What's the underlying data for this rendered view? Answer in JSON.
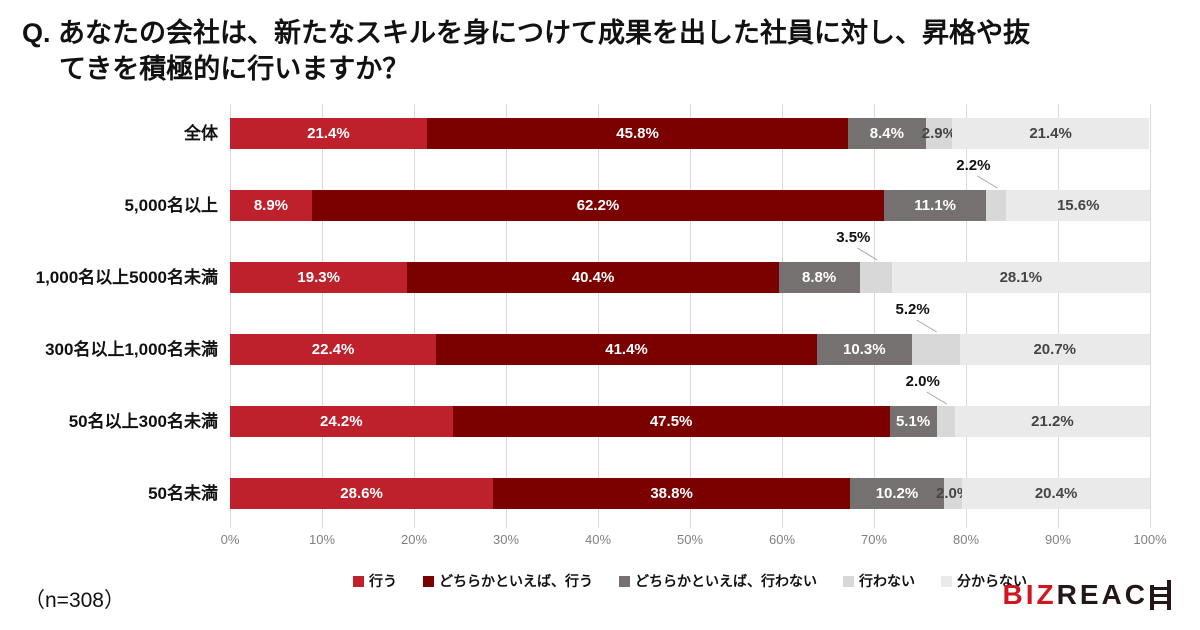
{
  "title": {
    "line1": "Q. あなたの会社は、新たなスキルを身につけて成果を出した社員に対し、昇格や抜",
    "line2": "てきを積極的に行いますか？"
  },
  "note": "（n=308）",
  "logo": {
    "text_red": "BIZ",
    "text_dark": "REAC",
    "ladder_icon": "ladder-h-icon",
    "red_color": "#d0161f",
    "dark_color": "#231815"
  },
  "chart_data": {
    "type": "bar",
    "orientation": "horizontal-stacked",
    "categories": [
      "全体",
      "5,000名以上",
      "1,000名以上5000名未満",
      "300名以上1,000名未満",
      "50名以上300名未満",
      "50名未満"
    ],
    "series": [
      {
        "name": "行う",
        "color": "#be212b",
        "values": [
          21.4,
          8.9,
          19.3,
          22.4,
          24.2,
          28.6
        ]
      },
      {
        "name": "どちらかといえば、行う",
        "color": "#7b0000",
        "values": [
          45.8,
          62.2,
          40.4,
          41.4,
          47.5,
          38.8
        ]
      },
      {
        "name": "どちらかといえば、行わない",
        "color": "#767171",
        "values": [
          8.4,
          11.1,
          8.8,
          10.3,
          5.1,
          10.2
        ]
      },
      {
        "name": "行わない",
        "color": "#d8d8d8",
        "values": [
          2.9,
          2.2,
          3.5,
          5.2,
          2.0,
          2.0
        ]
      },
      {
        "name": "分からない",
        "color": "#eaeaea",
        "values": [
          21.4,
          15.6,
          28.1,
          20.7,
          21.2,
          20.4
        ]
      }
    ],
    "callout_rows": [
      1,
      2,
      3,
      4
    ],
    "label_dark_color": "#454545",
    "label_light_color": "#ffffff",
    "xticks": [
      "0%",
      "10%",
      "20%",
      "30%",
      "40%",
      "50%",
      "60%",
      "70%",
      "80%",
      "90%",
      "100%"
    ],
    "xlim": [
      0,
      100
    ],
    "gridline_color": "#d9d9d9",
    "legend_position": "bottom"
  }
}
